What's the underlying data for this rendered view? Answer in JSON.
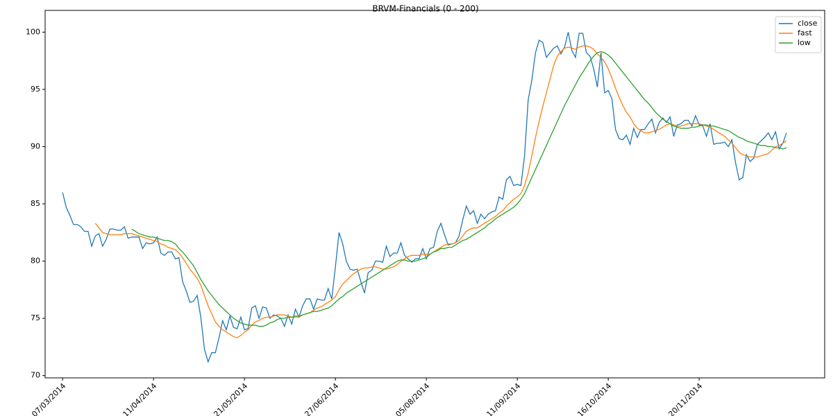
{
  "chart_data": {
    "type": "line",
    "title": "BRVM-Financials (0 - 200)",
    "categories": [
      "07/03/2014",
      null,
      null,
      null,
      null,
      null,
      null,
      null,
      null,
      null,
      null,
      null,
      null,
      null,
      null,
      null,
      null,
      null,
      null,
      null,
      null,
      null,
      null,
      null,
      null,
      "11/04/2014",
      null,
      null,
      null,
      null,
      null,
      null,
      null,
      null,
      null,
      null,
      null,
      null,
      null,
      null,
      null,
      null,
      null,
      null,
      null,
      null,
      null,
      null,
      null,
      null,
      "21/05/2014",
      null,
      null,
      null,
      null,
      null,
      null,
      null,
      null,
      null,
      null,
      null,
      null,
      null,
      null,
      null,
      null,
      null,
      null,
      null,
      null,
      null,
      null,
      null,
      null,
      "27/06/2014",
      null,
      null,
      null,
      null,
      null,
      null,
      null,
      null,
      null,
      null,
      null,
      null,
      null,
      null,
      null,
      null,
      null,
      null,
      null,
      null,
      null,
      null,
      null,
      null,
      "05/08/2014",
      null,
      null,
      null,
      null,
      null,
      null,
      null,
      null,
      null,
      null,
      null,
      null,
      null,
      null,
      null,
      null,
      null,
      null,
      null,
      null,
      null,
      null,
      null,
      null,
      "11/09/2014",
      null,
      null,
      null,
      null,
      null,
      null,
      null,
      null,
      null,
      null,
      null,
      null,
      null,
      null,
      null,
      null,
      null,
      null,
      null,
      null,
      null,
      null,
      null,
      null,
      "16/10/2014",
      null,
      null,
      null,
      null,
      null,
      null,
      null,
      null,
      null,
      null,
      null,
      null,
      null,
      null,
      null,
      null,
      null,
      null,
      null,
      null,
      null,
      null,
      null,
      null,
      "20/11/2014",
      null,
      null,
      null,
      null,
      null,
      null,
      null,
      null,
      null,
      null,
      null,
      null,
      null,
      null,
      null,
      null,
      null,
      null,
      null,
      null,
      null,
      null,
      null,
      null
    ],
    "series": [
      {
        "name": "close",
        "color": "#1f77b4",
        "values": [
          86,
          84.7,
          84,
          83.2,
          83.2,
          83,
          82.6,
          82.6,
          81.3,
          82.2,
          82.4,
          81.3,
          81.9,
          82.8,
          82.8,
          82.7,
          82.7,
          83,
          82,
          82.1,
          82.1,
          82.1,
          81.1,
          81.6,
          81.5,
          81.6,
          82.1,
          80.7,
          80.5,
          80.8,
          80.8,
          80.2,
          80.3,
          78.2,
          77.4,
          76.4,
          76.5,
          77,
          75.1,
          72.3,
          71.2,
          72,
          72,
          73.3,
          74.8,
          74,
          75.2,
          74.2,
          74.1,
          75.1,
          74,
          74.1,
          75.9,
          76.1,
          75,
          76,
          75.9,
          75,
          75.3,
          75.2,
          75,
          74.3,
          75.3,
          74.5,
          75.8,
          75.1,
          76.1,
          76.7,
          76.7,
          75.8,
          76.7,
          76.6,
          76.6,
          77.6,
          76.7,
          79.5,
          82.5,
          81.5,
          80,
          79.3,
          79.2,
          79.3,
          78.2,
          77.2,
          79,
          79.2,
          80,
          80,
          79.9,
          81.3,
          80.4,
          80.7,
          80.7,
          81.6,
          80.5,
          80.2,
          79.9,
          80.2,
          80.2,
          81.1,
          80.2,
          81.1,
          81.2,
          82.6,
          83.3,
          82.3,
          81.4,
          81.5,
          81.6,
          82.2,
          83.6,
          84.8,
          84.1,
          84.4,
          83.3,
          84.1,
          83.7,
          84.1,
          84.3,
          84.4,
          85.6,
          85.4,
          87.1,
          87.4,
          86.6,
          86.7,
          86.6,
          89.2,
          94.1,
          95.8,
          98.2,
          99.3,
          99.1,
          97.8,
          98.2,
          98.6,
          98.8,
          98.1,
          98.7,
          100,
          98.4,
          97.8,
          99.9,
          99.9,
          98.2,
          97.9,
          96.8,
          95.2,
          98.2,
          94.7,
          94.9,
          94.2,
          91.5,
          90.7,
          90.6,
          91,
          90.2,
          91.6,
          90.8,
          91.5,
          91.5,
          92,
          92.4,
          91.2,
          92.1,
          92.5,
          92.1,
          92.6,
          90.9,
          91.9,
          92,
          92.3,
          92.3,
          91.8,
          92.7,
          91.9,
          91.8,
          90.9,
          92,
          90.2,
          90.3,
          90.3,
          90.4,
          90,
          90.6,
          88.6,
          87.1,
          87.3,
          89.3,
          88.7,
          89,
          90.2,
          90.5,
          90.8,
          91.2,
          90.6,
          91.3,
          89.8,
          90.3,
          91.2
        ]
      },
      {
        "name": "fast",
        "color": "#ff7f0e",
        "values": [
          null,
          null,
          null,
          null,
          null,
          null,
          null,
          null,
          null,
          83.3,
          82.9,
          82.5,
          82.4,
          82.3,
          82.3,
          82.3,
          82.3,
          82.4,
          82.4,
          82.4,
          82.3,
          82.2,
          82.1,
          82,
          81.9,
          81.8,
          81.7,
          81.5,
          81.4,
          81.2,
          81.1,
          81,
          80.7,
          80.3,
          79.8,
          79.3,
          78.9,
          78.5,
          77.9,
          77,
          76.1,
          75.4,
          74.7,
          74.3,
          74,
          73.8,
          73.6,
          73.4,
          73.3,
          73.5,
          73.8,
          74,
          74.4,
          74.7,
          74.8,
          75,
          75.1,
          75.1,
          75.2,
          75.3,
          75.3,
          75.3,
          75.2,
          75.1,
          75.1,
          75.1,
          75.3,
          75.4,
          75.5,
          75.7,
          75.9,
          76,
          76.2,
          76.4,
          76.6,
          76.9,
          77.5,
          78,
          78.3,
          78.6,
          78.9,
          79.1,
          79.3,
          79.4,
          79.4,
          79.5,
          79.5,
          79.4,
          79.3,
          79.3,
          79.4,
          79.5,
          79.7,
          80,
          80.2,
          80.4,
          80.5,
          80.5,
          80.5,
          80.6,
          80.6,
          80.6,
          80.8,
          81,
          81.2,
          81.4,
          81.5,
          81.5,
          81.6,
          81.8,
          82.2,
          82.6,
          82.8,
          82.9,
          82.9,
          83.1,
          83.3,
          83.5,
          83.7,
          83.9,
          84.2,
          84.4,
          84.8,
          85.1,
          85.4,
          85.6,
          85.9,
          86.6,
          87.7,
          89.2,
          90.8,
          92.2,
          93.5,
          94.7,
          95.9,
          97.1,
          97.9,
          98.3,
          98.6,
          98.7,
          98.6,
          98.5,
          98.7,
          98.8,
          98.8,
          98.7,
          98.5,
          98.1,
          97.8,
          97.4,
          96.8,
          96,
          95.1,
          94.3,
          93.6,
          93,
          92.6,
          92,
          91.6,
          91.4,
          91.2,
          91.2,
          91.3,
          91.4,
          91.5,
          91.7,
          91.9,
          92,
          91.9,
          91.8,
          91.8,
          91.9,
          92,
          92,
          92,
          92,
          91.9,
          91.8,
          91.7,
          91.5,
          91.3,
          91.1,
          90.9,
          90.6,
          90.3,
          89.9,
          89.5,
          89.3,
          89.2,
          89.1,
          89.1,
          89.1,
          89.2,
          89.3,
          89.4,
          89.7,
          90,
          90.1,
          90.3,
          90.5
        ]
      },
      {
        "name": "low",
        "color": "#2ca02c",
        "values": [
          null,
          null,
          null,
          null,
          null,
          null,
          null,
          null,
          null,
          null,
          null,
          null,
          null,
          null,
          null,
          null,
          null,
          null,
          null,
          82.8,
          82.6,
          82.4,
          82.3,
          82.2,
          82.1,
          82.1,
          82,
          81.9,
          81.8,
          81.8,
          81.7,
          81.5,
          81.1,
          80.8,
          80.4,
          80,
          79.6,
          79,
          78.4,
          77.9,
          77.4,
          77,
          76.6,
          76.2,
          75.9,
          75.6,
          75.3,
          75,
          74.8,
          74.6,
          74.5,
          74.4,
          74.4,
          74.4,
          74.3,
          74.3,
          74.4,
          74.6,
          74.7,
          74.9,
          75,
          75,
          75.1,
          75.1,
          75.2,
          75.2,
          75.3,
          75.4,
          75.5,
          75.6,
          75.6,
          75.7,
          75.8,
          75.9,
          76.1,
          76.4,
          76.7,
          76.9,
          77.2,
          77.4,
          77.6,
          77.8,
          78,
          78.2,
          78.4,
          78.6,
          78.8,
          79,
          79.2,
          79.4,
          79.6,
          79.8,
          80,
          80.1,
          80.1,
          80,
          80,
          80,
          80.1,
          80.2,
          80.3,
          80.6,
          80.8,
          80.9,
          81.1,
          81.1,
          81.2,
          81.2,
          81.4,
          81.6,
          81.8,
          81.9,
          82.1,
          82.3,
          82.5,
          82.7,
          82.9,
          83.2,
          83.4,
          83.7,
          83.9,
          84.1,
          84.3,
          84.5,
          84.7,
          85,
          85.4,
          85.9,
          86.6,
          87.3,
          88,
          88.7,
          89.4,
          90.1,
          90.8,
          91.5,
          92.2,
          92.9,
          93.6,
          94.2,
          94.8,
          95.4,
          96,
          96.5,
          97,
          97.5,
          97.9,
          98.2,
          98.3,
          98.2,
          98,
          97.7,
          97.3,
          96.9,
          96.5,
          96.1,
          95.7,
          95.3,
          94.9,
          94.5,
          94.1,
          93.8,
          93.4,
          93,
          92.7,
          92.4,
          92.2,
          92,
          91.8,
          91.7,
          91.6,
          91.6,
          91.6,
          91.7,
          91.7,
          91.8,
          91.9,
          91.9,
          91.8,
          91.8,
          91.7,
          91.6,
          91.5,
          91.4,
          91.2,
          91,
          90.8,
          90.7,
          90.5,
          90.4,
          90.3,
          90.2,
          90.1,
          90.1,
          90,
          90,
          89.9,
          89.9,
          89.8,
          89.9
        ]
      }
    ],
    "xlim": [
      -4.8,
      209.5
    ],
    "ylim": [
      69.8,
      101.9
    ],
    "yticks": [
      70,
      75,
      80,
      85,
      90,
      95,
      100
    ],
    "legend": "upper right"
  }
}
